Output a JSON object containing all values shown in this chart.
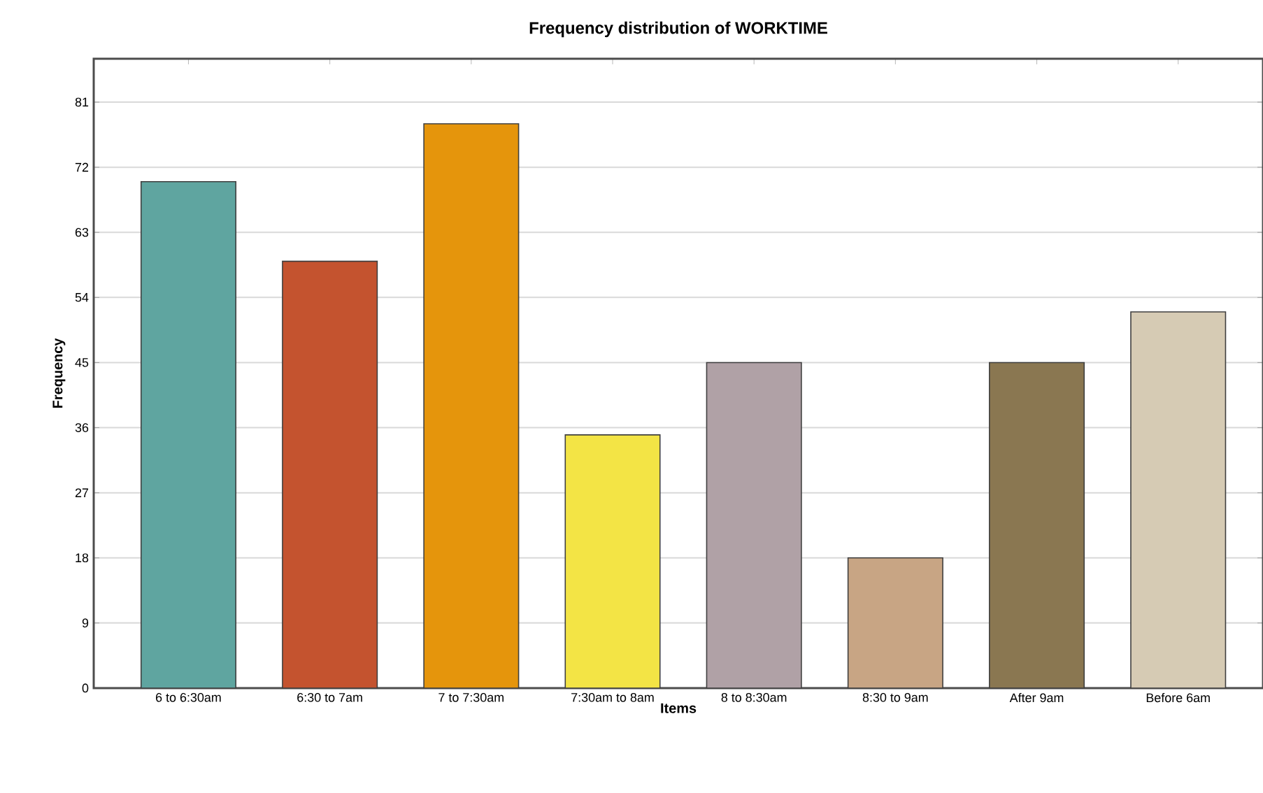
{
  "chart_data": {
    "type": "bar",
    "title": "Frequency distribution of WORKTIME",
    "xlabel": "Items",
    "ylabel": "Frequency",
    "categories": [
      "6 to 6:30am",
      "6:30 to 7am",
      "7 to 7:30am",
      "7:30am to 8am",
      "8 to 8:30am",
      "8:30 to 9am",
      "After 9am",
      "Before 6am"
    ],
    "values": [
      70,
      59,
      78,
      35,
      45,
      18,
      45,
      52
    ],
    "colors": [
      "#5fa5a0",
      "#c4532f",
      "#e5950c",
      "#f3e445",
      "#b0a1a6",
      "#c8a584",
      "#8a7751",
      "#d6cbb4"
    ],
    "ylim": [
      0,
      87
    ],
    "yticks": [
      0,
      9,
      18,
      27,
      36,
      45,
      54,
      63,
      72,
      81
    ],
    "grid": "y"
  }
}
